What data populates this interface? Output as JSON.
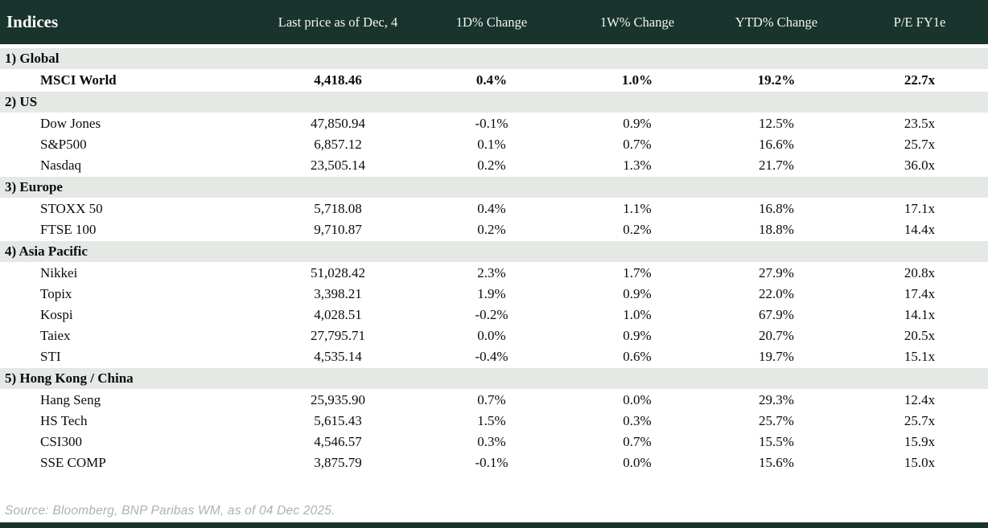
{
  "colors": {
    "header_bg": "#19332d",
    "section_bg": "#e4e9e5",
    "positive": "#008a2d",
    "negative": "#c3132f",
    "source_text": "#a8b2b9"
  },
  "table": {
    "title": "Indices",
    "columns": [
      "Last price as of Dec, 4",
      "1D% Change",
      "1W% Change",
      "YTD% Change",
      "P/E FY1e"
    ],
    "sections": [
      {
        "label": "1) Global",
        "rows": [
          {
            "name": "MSCI World",
            "price": "4,418.46",
            "chg_1d": "0.4%",
            "chg_1d_neg": false,
            "chg_1w": "1.0%",
            "chg_1w_neg": false,
            "ytd": "19.2%",
            "ytd_neg": false,
            "pe": "22.7x",
            "bold": true
          }
        ]
      },
      {
        "label": "2) US",
        "rows": [
          {
            "name": "Dow Jones",
            "price": "47,850.94",
            "chg_1d": "-0.1%",
            "chg_1d_neg": true,
            "chg_1w": "0.9%",
            "chg_1w_neg": false,
            "ytd": "12.5%",
            "ytd_neg": false,
            "pe": "23.5x",
            "bold": false
          },
          {
            "name": "S&P500",
            "price": "6,857.12",
            "chg_1d": "0.1%",
            "chg_1d_neg": false,
            "chg_1w": "0.7%",
            "chg_1w_neg": false,
            "ytd": "16.6%",
            "ytd_neg": false,
            "pe": "25.7x",
            "bold": false
          },
          {
            "name": "Nasdaq",
            "price": "23,505.14",
            "chg_1d": "0.2%",
            "chg_1d_neg": false,
            "chg_1w": "1.3%",
            "chg_1w_neg": false,
            "ytd": "21.7%",
            "ytd_neg": false,
            "pe": "36.0x",
            "bold": false
          }
        ]
      },
      {
        "label": "3) Europe",
        "rows": [
          {
            "name": "STOXX 50",
            "price": "5,718.08",
            "chg_1d": "0.4%",
            "chg_1d_neg": false,
            "chg_1w": "1.1%",
            "chg_1w_neg": false,
            "ytd": "16.8%",
            "ytd_neg": false,
            "pe": "17.1x",
            "bold": false
          },
          {
            "name": "FTSE 100",
            "price": "9,710.87",
            "chg_1d": "0.2%",
            "chg_1d_neg": false,
            "chg_1w": "0.2%",
            "chg_1w_neg": false,
            "ytd": "18.8%",
            "ytd_neg": false,
            "pe": "14.4x",
            "bold": false
          }
        ]
      },
      {
        "label": "4) Asia Pacific",
        "rows": [
          {
            "name": "Nikkei",
            "price": "51,028.42",
            "chg_1d": "2.3%",
            "chg_1d_neg": false,
            "chg_1w": "1.7%",
            "chg_1w_neg": false,
            "ytd": "27.9%",
            "ytd_neg": false,
            "pe": "20.8x",
            "bold": false
          },
          {
            "name": "Topix",
            "price": "3,398.21",
            "chg_1d": "1.9%",
            "chg_1d_neg": false,
            "chg_1w": "0.9%",
            "chg_1w_neg": false,
            "ytd": "22.0%",
            "ytd_neg": false,
            "pe": "17.4x",
            "bold": false
          },
          {
            "name": "Kospi",
            "price": "4,028.51",
            "chg_1d": "-0.2%",
            "chg_1d_neg": true,
            "chg_1w": "1.0%",
            "chg_1w_neg": false,
            "ytd": "67.9%",
            "ytd_neg": false,
            "pe": "14.1x",
            "bold": false
          },
          {
            "name": "Taiex",
            "price": "27,795.71",
            "chg_1d": "0.0%",
            "chg_1d_neg": false,
            "chg_1w": "0.9%",
            "chg_1w_neg": false,
            "ytd": "20.7%",
            "ytd_neg": false,
            "pe": "20.5x",
            "bold": false
          },
          {
            "name": "STI",
            "price": "4,535.14",
            "chg_1d": "-0.4%",
            "chg_1d_neg": true,
            "chg_1w": "0.6%",
            "chg_1w_neg": false,
            "ytd": "19.7%",
            "ytd_neg": false,
            "pe": "15.1x",
            "bold": false
          }
        ]
      },
      {
        "label": "5) Hong Kong / China",
        "rows": [
          {
            "name": "Hang Seng",
            "price": "25,935.90",
            "chg_1d": "0.7%",
            "chg_1d_neg": false,
            "chg_1w": "0.0%",
            "chg_1w_neg": true,
            "ytd": "29.3%",
            "ytd_neg": false,
            "pe": "12.4x",
            "bold": false
          },
          {
            "name": "HS Tech",
            "price": "5,615.43",
            "chg_1d": "1.5%",
            "chg_1d_neg": false,
            "chg_1w": "0.3%",
            "chg_1w_neg": false,
            "ytd": "25.7%",
            "ytd_neg": false,
            "pe": "25.7x",
            "bold": false
          },
          {
            "name": "CSI300",
            "price": "4,546.57",
            "chg_1d": "0.3%",
            "chg_1d_neg": false,
            "chg_1w": "0.7%",
            "chg_1w_neg": false,
            "ytd": "15.5%",
            "ytd_neg": false,
            "pe": "15.9x",
            "bold": false
          },
          {
            "name": "SSE COMP",
            "price": "3,875.79",
            "chg_1d": "-0.1%",
            "chg_1d_neg": true,
            "chg_1w": "0.0%",
            "chg_1w_neg": false,
            "ytd": "15.6%",
            "ytd_neg": false,
            "pe": "15.0x",
            "bold": false
          }
        ]
      }
    ]
  },
  "footer": {
    "source": "Source: Bloomberg, BNP Paribas WM, as of 04 Dec 2025."
  },
  "chart_data": {
    "type": "table",
    "title": "Indices",
    "columns": [
      "Indices",
      "Last price as of Dec, 4",
      "1D% Change",
      "1W% Change",
      "YTD% Change",
      "P/E FY1e"
    ],
    "rows": [
      {
        "section": "1) Global",
        "index": "MSCI World",
        "last_price": 4418.46,
        "chg_1d_pct": 0.4,
        "chg_1w_pct": 1.0,
        "ytd_pct": 19.2,
        "pe_fy1e": 22.7
      },
      {
        "section": "2) US",
        "index": "Dow Jones",
        "last_price": 47850.94,
        "chg_1d_pct": -0.1,
        "chg_1w_pct": 0.9,
        "ytd_pct": 12.5,
        "pe_fy1e": 23.5
      },
      {
        "section": "2) US",
        "index": "S&P500",
        "last_price": 6857.12,
        "chg_1d_pct": 0.1,
        "chg_1w_pct": 0.7,
        "ytd_pct": 16.6,
        "pe_fy1e": 25.7
      },
      {
        "section": "2) US",
        "index": "Nasdaq",
        "last_price": 23505.14,
        "chg_1d_pct": 0.2,
        "chg_1w_pct": 1.3,
        "ytd_pct": 21.7,
        "pe_fy1e": 36.0
      },
      {
        "section": "3) Europe",
        "index": "STOXX 50",
        "last_price": 5718.08,
        "chg_1d_pct": 0.4,
        "chg_1w_pct": 1.1,
        "ytd_pct": 16.8,
        "pe_fy1e": 17.1
      },
      {
        "section": "3) Europe",
        "index": "FTSE 100",
        "last_price": 9710.87,
        "chg_1d_pct": 0.2,
        "chg_1w_pct": 0.2,
        "ytd_pct": 18.8,
        "pe_fy1e": 14.4
      },
      {
        "section": "4) Asia Pacific",
        "index": "Nikkei",
        "last_price": 51028.42,
        "chg_1d_pct": 2.3,
        "chg_1w_pct": 1.7,
        "ytd_pct": 27.9,
        "pe_fy1e": 20.8
      },
      {
        "section": "4) Asia Pacific",
        "index": "Topix",
        "last_price": 3398.21,
        "chg_1d_pct": 1.9,
        "chg_1w_pct": 0.9,
        "ytd_pct": 22.0,
        "pe_fy1e": 17.4
      },
      {
        "section": "4) Asia Pacific",
        "index": "Kospi",
        "last_price": 4028.51,
        "chg_1d_pct": -0.2,
        "chg_1w_pct": 1.0,
        "ytd_pct": 67.9,
        "pe_fy1e": 14.1
      },
      {
        "section": "4) Asia Pacific",
        "index": "Taiex",
        "last_price": 27795.71,
        "chg_1d_pct": 0.0,
        "chg_1w_pct": 0.9,
        "ytd_pct": 20.7,
        "pe_fy1e": 20.5
      },
      {
        "section": "4) Asia Pacific",
        "index": "STI",
        "last_price": 4535.14,
        "chg_1d_pct": -0.4,
        "chg_1w_pct": 0.6,
        "ytd_pct": 19.7,
        "pe_fy1e": 15.1
      },
      {
        "section": "5) Hong Kong / China",
        "index": "Hang Seng",
        "last_price": 25935.9,
        "chg_1d_pct": 0.7,
        "chg_1w_pct": 0.0,
        "ytd_pct": 29.3,
        "pe_fy1e": 12.4
      },
      {
        "section": "5) Hong Kong / China",
        "index": "HS Tech",
        "last_price": 5615.43,
        "chg_1d_pct": 1.5,
        "chg_1w_pct": 0.3,
        "ytd_pct": 25.7,
        "pe_fy1e": 25.7
      },
      {
        "section": "5) Hong Kong / China",
        "index": "CSI300",
        "last_price": 4546.57,
        "chg_1d_pct": 0.3,
        "chg_1w_pct": 0.7,
        "ytd_pct": 15.5,
        "pe_fy1e": 15.9
      },
      {
        "section": "5) Hong Kong / China",
        "index": "SSE COMP",
        "last_price": 3875.79,
        "chg_1d_pct": -0.1,
        "chg_1w_pct": 0.0,
        "ytd_pct": 15.6,
        "pe_fy1e": 15.0
      }
    ],
    "notes": "Color coding: green = positive/flat change, red = negative change; Hang Seng 1W 0.0% shown red, SSE COMP 1W 0.0% shown green"
  }
}
